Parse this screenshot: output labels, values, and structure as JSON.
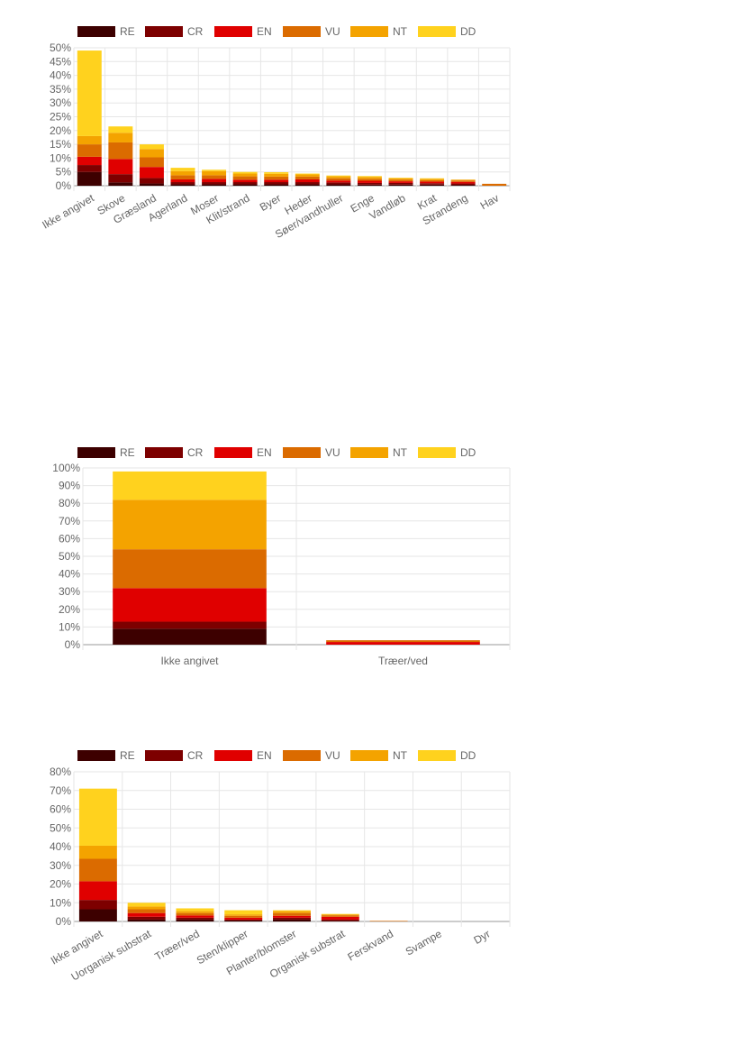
{
  "legend": [
    {
      "label": "RE",
      "color": "#3d0000"
    },
    {
      "label": "CR",
      "color": "#7d0000"
    },
    {
      "label": "EN",
      "color": "#e00000"
    },
    {
      "label": "VU",
      "color": "#db6b00"
    },
    {
      "label": "NT",
      "color": "#f4a300"
    },
    {
      "label": "DD",
      "color": "#ffd21e"
    }
  ],
  "chart_data": [
    {
      "type": "bar",
      "stacked": true,
      "ylim": [
        0,
        50
      ],
      "y_ticks": [
        "0%",
        "5%",
        "10%",
        "15%",
        "20%",
        "25%",
        "30%",
        "35%",
        "40%",
        "45%",
        "50%"
      ],
      "y_tick_values": [
        0,
        5,
        10,
        15,
        20,
        25,
        30,
        35,
        40,
        45,
        50
      ],
      "x_label_rotation": "angled",
      "legend_position": "top",
      "grid": true,
      "categories": [
        "Ikke angivet",
        "Skove",
        "Græsland",
        "Agerland",
        "Moser",
        "Klit/strand",
        "Byer",
        "Heder",
        "Søer/vandhuller",
        "Enge",
        "Vandløb",
        "Krat",
        "Strandeng",
        "Hav"
      ],
      "series": [
        {
          "name": "RE",
          "values": [
            5.0,
            1.2,
            0.8,
            0.5,
            0.5,
            0.5,
            0.5,
            0.5,
            0.5,
            0.4,
            0.4,
            0.4,
            0.3,
            0.0
          ]
        },
        {
          "name": "CR",
          "values": [
            2.5,
            3.0,
            2.0,
            0.8,
            0.8,
            0.8,
            0.8,
            0.8,
            0.7,
            0.6,
            0.6,
            0.5,
            0.5,
            0.0
          ]
        },
        {
          "name": "EN",
          "values": [
            3.0,
            5.5,
            4.0,
            1.0,
            1.2,
            0.9,
            0.9,
            1.0,
            0.7,
            0.8,
            0.6,
            0.6,
            0.6,
            0.0
          ]
        },
        {
          "name": "VU",
          "values": [
            4.5,
            6.0,
            3.5,
            1.5,
            1.3,
            1.2,
            1.1,
            1.0,
            0.8,
            0.7,
            0.6,
            0.5,
            0.5,
            0.7
          ]
        },
        {
          "name": "NT",
          "values": [
            3.0,
            3.5,
            3.0,
            1.5,
            1.5,
            1.0,
            1.0,
            0.8,
            0.7,
            0.7,
            0.5,
            0.5,
            0.3,
            0.0
          ]
        },
        {
          "name": "DD",
          "values": [
            31.0,
            2.3,
            1.7,
            1.2,
            0.5,
            0.6,
            0.6,
            0.3,
            0.3,
            0.3,
            0.2,
            0.2,
            0.0,
            0.0
          ]
        }
      ]
    },
    {
      "type": "bar",
      "stacked": true,
      "ylim": [
        0,
        100
      ],
      "y_ticks": [
        "0%",
        "10%",
        "20%",
        "30%",
        "40%",
        "50%",
        "60%",
        "70%",
        "80%",
        "90%",
        "100%"
      ],
      "y_tick_values": [
        0,
        10,
        20,
        30,
        40,
        50,
        60,
        70,
        80,
        90,
        100
      ],
      "x_label_rotation": "none",
      "legend_position": "top",
      "grid": true,
      "categories": [
        "Ikke angivet",
        "Træer/ved"
      ],
      "series": [
        {
          "name": "RE",
          "values": [
            9,
            0
          ]
        },
        {
          "name": "CR",
          "values": [
            4,
            0
          ]
        },
        {
          "name": "EN",
          "values": [
            19,
            1.5
          ]
        },
        {
          "name": "VU",
          "values": [
            22,
            1
          ]
        },
        {
          "name": "NT",
          "values": [
            28,
            0
          ]
        },
        {
          "name": "DD",
          "values": [
            16,
            0
          ]
        }
      ]
    },
    {
      "type": "bar",
      "stacked": true,
      "ylim": [
        0,
        80
      ],
      "y_ticks": [
        "0%",
        "10%",
        "20%",
        "30%",
        "40%",
        "50%",
        "60%",
        "70%",
        "80%"
      ],
      "y_tick_values": [
        0,
        10,
        20,
        30,
        40,
        50,
        60,
        70,
        80
      ],
      "x_label_rotation": "angled",
      "legend_position": "top",
      "grid": true,
      "categories": [
        "Ikke angivet",
        "Uorganisk substrat",
        "Træer/ved",
        "Sten/klipper",
        "Planter/blomster",
        "Organisk substrat",
        "Ferskvand",
        "Svampe",
        "Dyr"
      ],
      "series": [
        {
          "name": "RE",
          "values": [
            6.5,
            1.0,
            1.0,
            0.5,
            1.0,
            0.3,
            0.0,
            0.0,
            0.0
          ]
        },
        {
          "name": "CR",
          "values": [
            5.0,
            1.5,
            1.0,
            0.5,
            1.0,
            0.7,
            0.0,
            0.0,
            0.0
          ]
        },
        {
          "name": "EN",
          "values": [
            10.0,
            2.0,
            1.2,
            1.0,
            1.0,
            1.5,
            0.0,
            0.0,
            0.0
          ]
        },
        {
          "name": "VU",
          "values": [
            12.0,
            2.0,
            1.3,
            1.0,
            1.5,
            0.8,
            0.3,
            0.0,
            0.0
          ]
        },
        {
          "name": "NT",
          "values": [
            7.0,
            1.5,
            1.0,
            0.8,
            1.0,
            0.5,
            0.0,
            0.0,
            0.0
          ]
        },
        {
          "name": "DD",
          "values": [
            30.5,
            2.0,
            1.5,
            2.2,
            0.5,
            0.2,
            0.0,
            0.0,
            0.0
          ]
        }
      ]
    }
  ]
}
